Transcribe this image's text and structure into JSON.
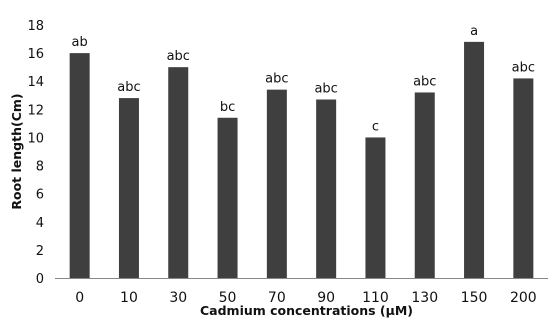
{
  "chart_data": {
    "type": "bar",
    "categories": [
      "0",
      "10",
      "30",
      "50",
      "70",
      "90",
      "110",
      "130",
      "150",
      "200"
    ],
    "values": [
      16.0,
      12.8,
      15.0,
      11.4,
      13.4,
      12.7,
      10.0,
      13.2,
      16.8,
      14.2
    ],
    "bar_labels": [
      "ab",
      "abc",
      "abc",
      "bc",
      "abc",
      "abc",
      "c",
      "abc",
      "a",
      "abc"
    ],
    "xlabel": "Cadmium concentrations (μM)",
    "ylabel": "Root length(Cm)",
    "ylim": [
      0,
      18
    ],
    "yticks": [
      0,
      2,
      4,
      6,
      8,
      10,
      12,
      14,
      16,
      18
    ],
    "grid": false,
    "bar_color": "#3f3f3f",
    "axis_color": "#888888"
  }
}
